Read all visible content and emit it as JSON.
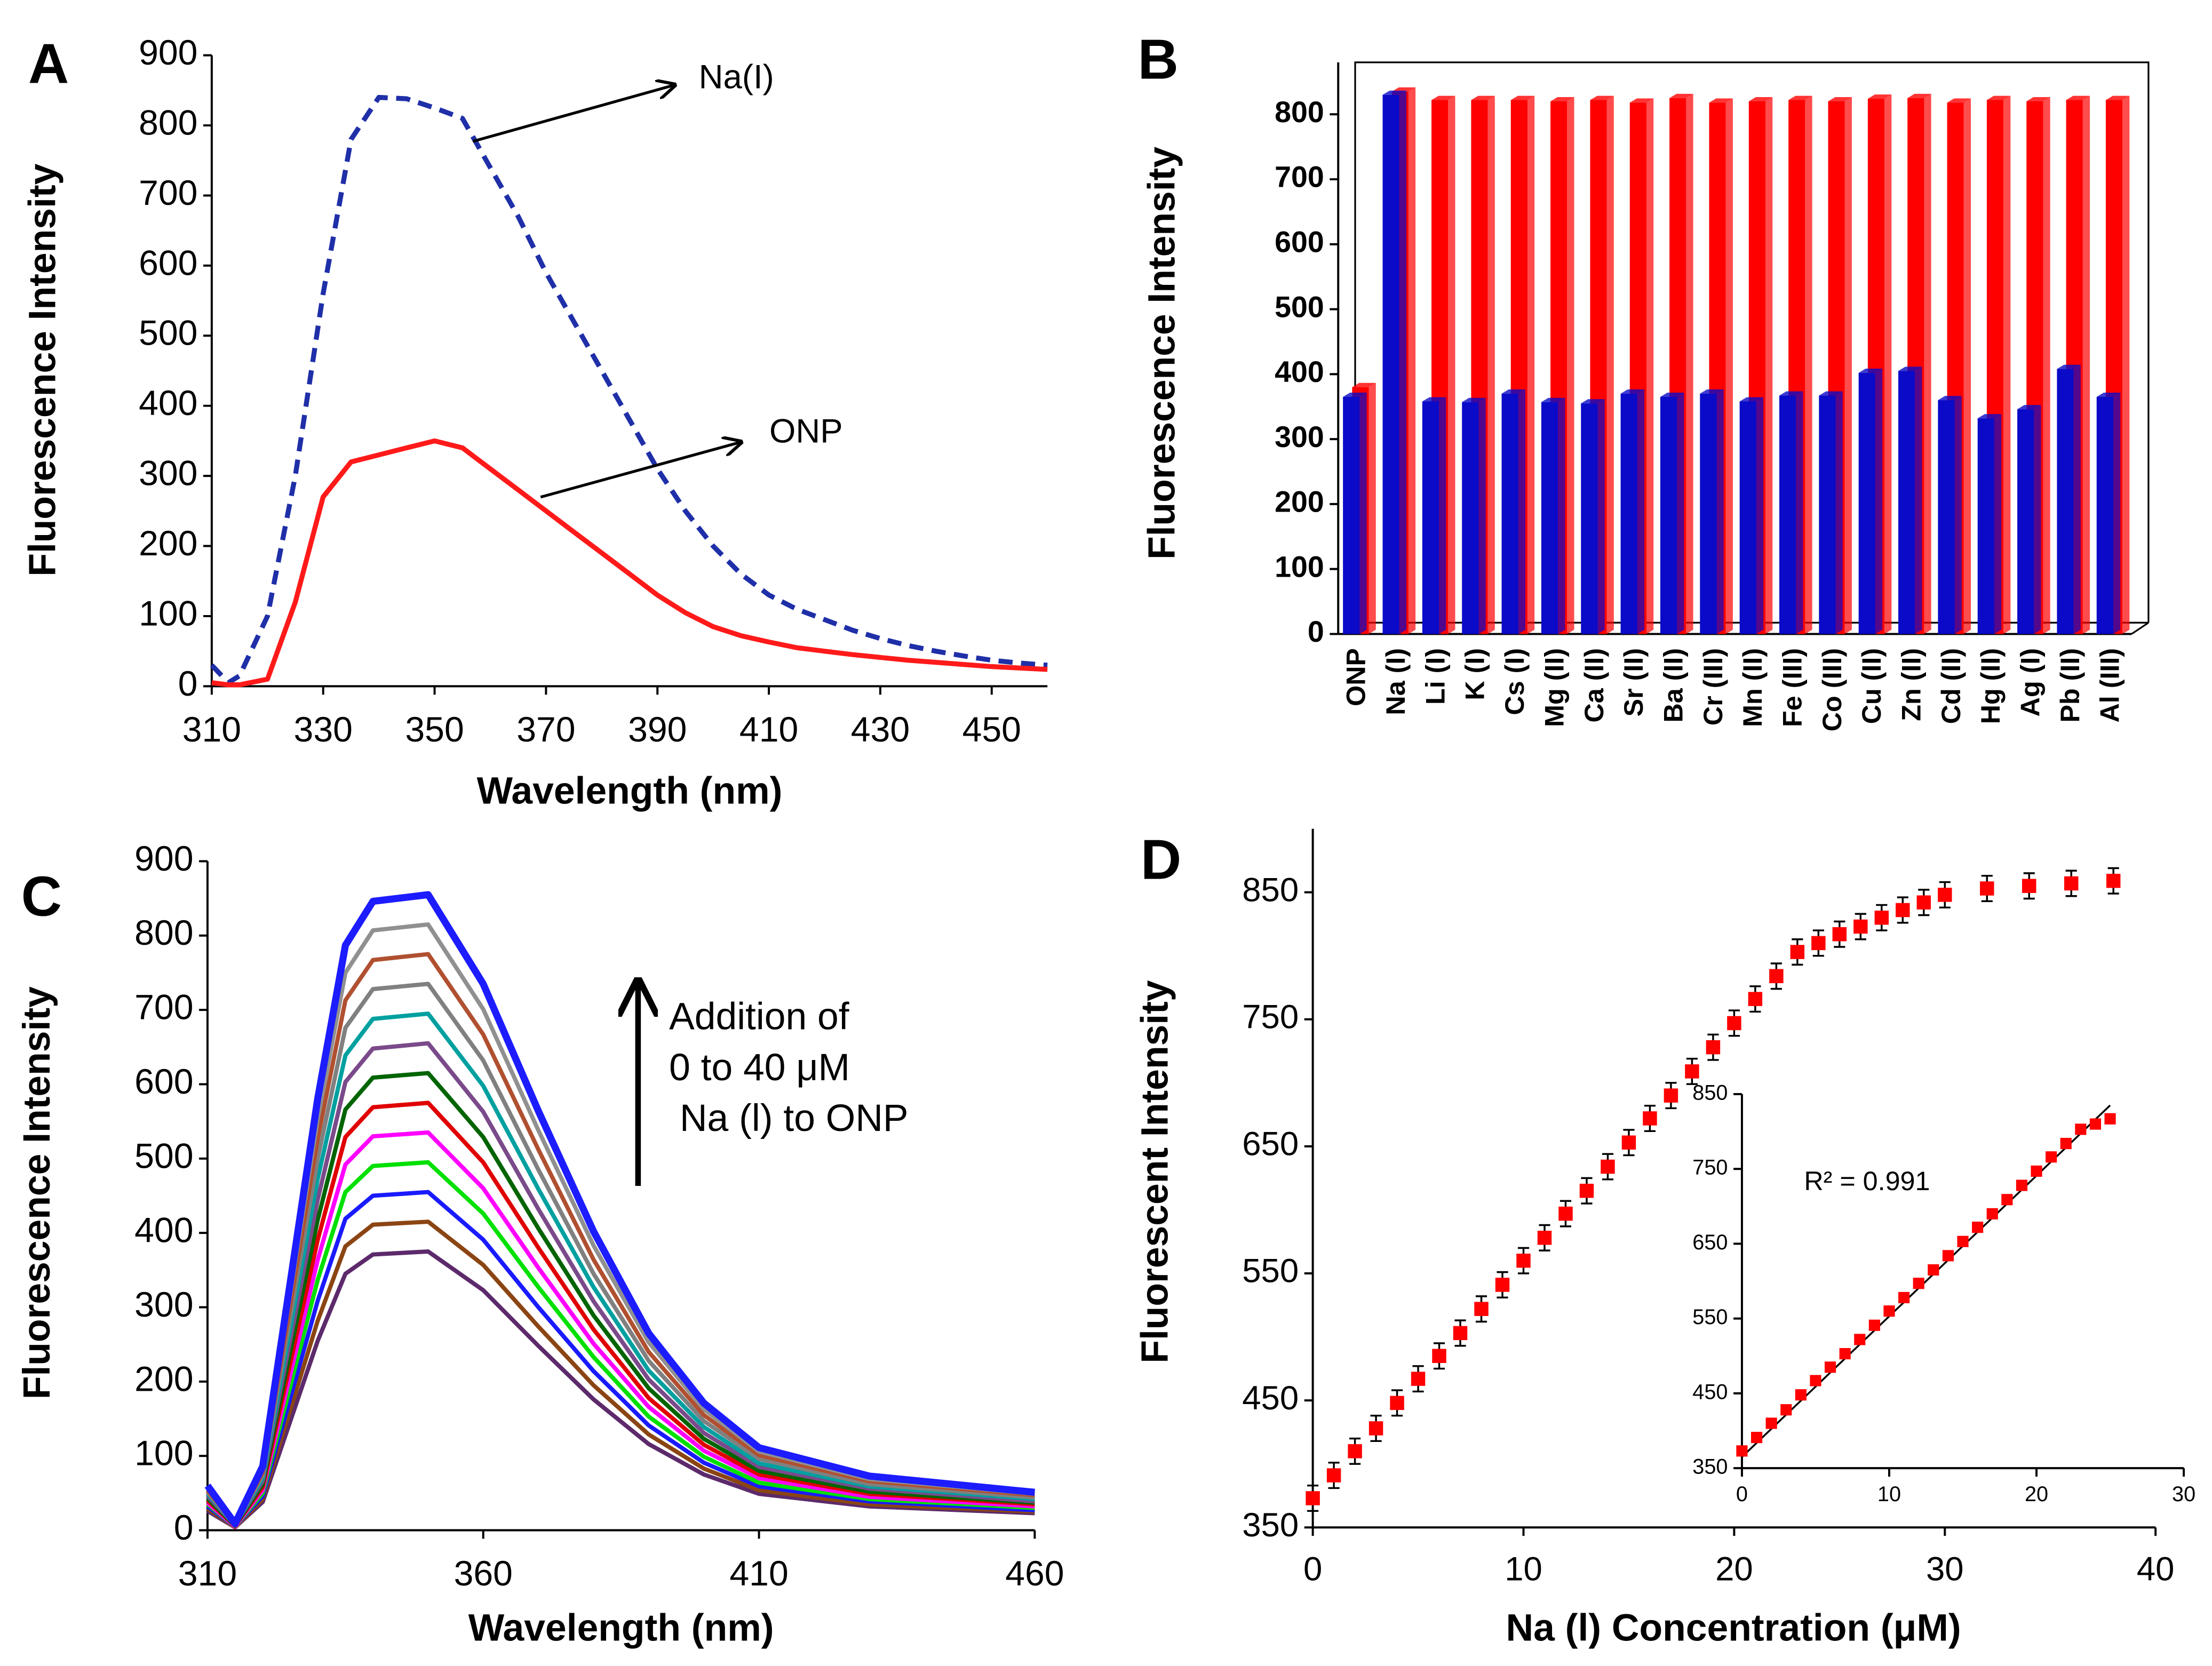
{
  "chart_data": [
    {
      "type": "line",
      "panel_label": "A",
      "xlabel": "Wavelength (nm)",
      "ylabel": "Fluorescence Intensity",
      "xlim": [
        310,
        460
      ],
      "xticks": [
        310,
        330,
        350,
        370,
        390,
        410,
        430,
        450
      ],
      "ylim": [
        0,
        900
      ],
      "yticks": [
        0,
        100,
        200,
        300,
        400,
        500,
        600,
        700,
        800,
        900
      ],
      "x": [
        310,
        313,
        315,
        320,
        325,
        330,
        335,
        340,
        345,
        350,
        355,
        360,
        365,
        370,
        375,
        380,
        385,
        390,
        395,
        400,
        405,
        410,
        415,
        420,
        425,
        430,
        435,
        440,
        445,
        450,
        455,
        460
      ],
      "series": [
        {
          "name": "Na(I)",
          "color": "#1f2fa8",
          "dashed": true,
          "values": [
            30,
            5,
            15,
            100,
            300,
            560,
            780,
            840,
            838,
            825,
            810,
            740,
            670,
            590,
            520,
            450,
            380,
            310,
            250,
            200,
            160,
            130,
            110,
            95,
            80,
            68,
            58,
            50,
            43,
            37,
            33,
            30
          ]
        },
        {
          "name": "ONP",
          "color": "#ff1a1a",
          "dashed": false,
          "values": [
            5,
            2,
            2,
            10,
            120,
            270,
            320,
            330,
            340,
            350,
            340,
            310,
            280,
            250,
            220,
            190,
            160,
            130,
            105,
            85,
            72,
            63,
            55,
            50,
            45,
            41,
            37,
            34,
            31,
            28,
            26,
            24
          ]
        }
      ]
    },
    {
      "type": "bar",
      "panel_label": "B",
      "ylabel": "Fluorescence Intensity",
      "ylim": [
        0,
        880
      ],
      "yticks": [
        0,
        100,
        200,
        300,
        400,
        500,
        600,
        700,
        800
      ],
      "categories": [
        "ONP",
        "Na (I)",
        "Li (I)",
        "K (I)",
        "Cs (I)",
        "Mg (II)",
        "Ca (II)",
        "Sr (II)",
        "Ba (II)",
        "Cr (III)",
        "Mn (II)",
        "Fe (III)",
        "Co (III)",
        "Cu (II)",
        "Zn (II)",
        "Cd (II)",
        "Hg (II)",
        "Ag (I)",
        "Pb (II)",
        "Al (III)"
      ],
      "series": [
        {
          "color": "#0a0ac8",
          "values": [
            365,
            830,
            358,
            357,
            370,
            357,
            355,
            370,
            365,
            370,
            358,
            367,
            367,
            402,
            405,
            360,
            332,
            346,
            408,
            365
          ]
        },
        {
          "color": "#ff0000",
          "values": [
            380,
            835,
            822,
            822,
            822,
            820,
            822,
            818,
            825,
            818,
            820,
            822,
            820,
            824,
            825,
            818,
            822,
            820,
            822,
            822
          ]
        }
      ]
    },
    {
      "type": "line",
      "panel_label": "C",
      "xlabel": "Wavelength (nm)",
      "ylabel": "Fluorescence Intensity",
      "annotation": [
        "Addition of",
        "0 to 40 μM",
        " Na (l) to ONP"
      ],
      "xlim": [
        310,
        460
      ],
      "xticks": [
        310,
        360,
        410,
        460
      ],
      "ylim": [
        0,
        900
      ],
      "yticks": [
        0,
        100,
        200,
        300,
        400,
        500,
        600,
        700,
        800,
        900
      ],
      "x": [
        310,
        315,
        320,
        330,
        335,
        340,
        350,
        360,
        370,
        380,
        390,
        400,
        410,
        430,
        460
      ],
      "series": [
        {
          "color": "#5c2a6b",
          "values": [
            26,
            4,
            38,
            255,
            345,
            371,
            375,
            323,
            248,
            176,
            116,
            75,
            49,
            32,
            23
          ]
        },
        {
          "color": "#8b4513",
          "values": [
            29,
            4,
            42,
            282,
            382,
            411,
            415,
            357,
            274,
            195,
            129,
            83,
            54,
            35,
            25
          ]
        },
        {
          "color": "#1a1aff",
          "values": [
            32,
            5,
            46,
            309,
            419,
            450,
            455,
            391,
            300,
            214,
            141,
            91,
            59,
            39,
            27
          ]
        },
        {
          "color": "#00e000",
          "values": [
            35,
            5,
            50,
            337,
            455,
            490,
            495,
            426,
            327,
            233,
            153,
            99,
            64,
            42,
            30
          ]
        },
        {
          "color": "#ff00ff",
          "values": [
            37,
            5,
            54,
            364,
            492,
            530,
            535,
            460,
            353,
            251,
            166,
            107,
            70,
            45,
            32
          ]
        },
        {
          "color": "#e00000",
          "values": [
            40,
            6,
            58,
            391,
            529,
            569,
            575,
            495,
            380,
            270,
            178,
            115,
            75,
            49,
            35
          ]
        },
        {
          "color": "#006400",
          "values": [
            43,
            6,
            62,
            418,
            566,
            609,
            615,
            529,
            406,
            289,
            191,
            123,
            80,
            52,
            37
          ]
        },
        {
          "color": "#7a4a8a",
          "values": [
            46,
            7,
            66,
            445,
            603,
            648,
            655,
            563,
            432,
            308,
            203,
            131,
            85,
            56,
            39
          ]
        },
        {
          "color": "#00a0a0",
          "values": [
            49,
            7,
            70,
            473,
            639,
            688,
            695,
            598,
            459,
            327,
            215,
            139,
            90,
            59,
            42
          ]
        },
        {
          "color": "#808080",
          "values": [
            51,
            7,
            74,
            500,
            676,
            728,
            735,
            632,
            485,
            345,
            228,
            147,
            96,
            62,
            44
          ]
        },
        {
          "color": "#b05030",
          "values": [
            54,
            8,
            78,
            527,
            713,
            767,
            775,
            667,
            512,
            364,
            240,
            155,
            101,
            66,
            47
          ]
        },
        {
          "color": "#909090",
          "values": [
            57,
            8,
            82,
            554,
            750,
            807,
            815,
            701,
            538,
            383,
            253,
            163,
            106,
            69,
            49
          ]
        },
        {
          "color": "#1c1cff",
          "values": [
            60,
            9,
            86,
            581,
            787,
            846,
            855,
            735,
            564,
            402,
            265,
            171,
            111,
            73,
            51
          ]
        }
      ]
    },
    {
      "type": "scatter",
      "panel_label": "D",
      "xlabel": "Na (l) Concentration (μM)",
      "ylabel": "Fluorescent Intensity",
      "color": "#ff0000",
      "xlim": [
        0,
        40
      ],
      "xticks": [
        0,
        10,
        20,
        30,
        40
      ],
      "ylim": [
        350,
        900
      ],
      "yticks": [
        350,
        450,
        550,
        650,
        750,
        850
      ],
      "x": [
        0,
        1,
        2,
        3,
        4,
        5,
        6,
        7,
        8,
        9,
        10,
        11,
        12,
        13,
        14,
        15,
        16,
        17,
        18,
        19,
        20,
        21,
        22,
        23,
        24,
        25,
        26,
        27,
        28,
        29,
        30,
        32,
        34,
        36,
        38
      ],
      "values": [
        373,
        391,
        410,
        428,
        448,
        467,
        485,
        503,
        522,
        541,
        560,
        578,
        597,
        615,
        634,
        653,
        672,
        690,
        709,
        728,
        747,
        766,
        784,
        803,
        810,
        817,
        823,
        830,
        836,
        842,
        848,
        853,
        855,
        857,
        859
      ],
      "errors": [
        10,
        10,
        10,
        10,
        10,
        10,
        10,
        10,
        10,
        10,
        10,
        10,
        10,
        10,
        10,
        10,
        10,
        10,
        10,
        10,
        10,
        10,
        10,
        10,
        10,
        10,
        10,
        10,
        10,
        10,
        10,
        10,
        10,
        10,
        10
      ]
    },
    {
      "type": "scatter",
      "color": "#ff0000",
      "annotation": "R² = 0.991",
      "xlim": [
        0,
        30
      ],
      "xticks": [
        0,
        10,
        20,
        30
      ],
      "ylim": [
        350,
        850
      ],
      "yticks": [
        350,
        450,
        550,
        650,
        750,
        850
      ],
      "x": [
        0,
        1,
        2,
        3,
        4,
        5,
        6,
        7,
        8,
        9,
        10,
        11,
        12,
        13,
        14,
        15,
        16,
        17,
        18,
        19,
        20,
        21,
        22,
        23,
        24,
        25
      ],
      "values": [
        373,
        391,
        410,
        428,
        448,
        467,
        485,
        503,
        522,
        541,
        560,
        578,
        597,
        615,
        634,
        653,
        672,
        690,
        709,
        728,
        747,
        766,
        784,
        803,
        810,
        817
      ],
      "trendline": {
        "x": [
          0,
          25
        ],
        "y": [
          365,
          835
        ]
      }
    }
  ]
}
